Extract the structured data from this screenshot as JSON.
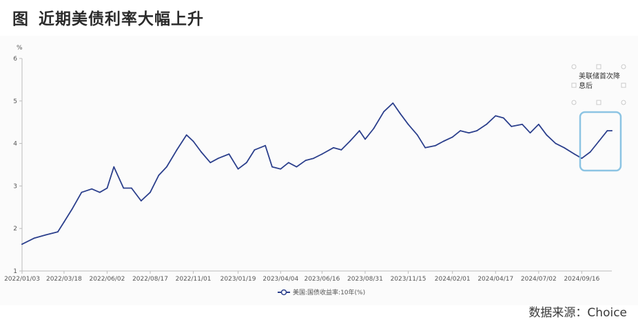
{
  "figure": {
    "title_prefix": "图",
    "title": "近期美债利率大幅上升",
    "source": "数据来源：Choice"
  },
  "colors": {
    "line": "#2b3f8c",
    "highlight_box": "#8cc4e3",
    "axis": "#bbbbbb"
  },
  "chart_data": {
    "type": "line",
    "ylabel": "%",
    "ylim": [
      1,
      6
    ],
    "y_ticks": [
      1,
      2,
      3,
      4,
      5,
      6
    ],
    "x_tick_labels": [
      "2022/01/03",
      "2022/03/18",
      "2022/06/02",
      "2022/08/17",
      "2022/11/01",
      "2023/01/19",
      "2023/04/04",
      "2023/06/16",
      "2023/08/31",
      "2023/11/15",
      "2024/02/01",
      "2024/04/17",
      "2024/07/02",
      "2024/09/16"
    ],
    "legend": "美国:国债收益率:10年(%)",
    "annotation": "美联储首次降息后",
    "x": [
      "2022/01/03",
      "2022/01/24",
      "2022/02/14",
      "2022/03/07",
      "2022/03/18",
      "2022/04/01",
      "2022/04/18",
      "2022/05/06",
      "2022/05/20",
      "2022/06/02",
      "2022/06/14",
      "2022/07/01",
      "2022/07/15",
      "2022/08/01",
      "2022/08/17",
      "2022/09/01",
      "2022/09/15",
      "2022/10/03",
      "2022/10/20",
      "2022/11/01",
      "2022/11/15",
      "2022/12/01",
      "2022/12/15",
      "2023/01/03",
      "2023/01/19",
      "2023/02/03",
      "2023/02/17",
      "2023/03/08",
      "2023/03/20",
      "2023/04/04",
      "2023/04/18",
      "2023/05/02",
      "2023/05/18",
      "2023/06/01",
      "2023/06/16",
      "2023/07/06",
      "2023/07/20",
      "2023/08/04",
      "2023/08/21",
      "2023/08/31",
      "2023/09/15",
      "2023/10/03",
      "2023/10/19",
      "2023/11/01",
      "2023/11/15",
      "2023/12/01",
      "2023/12/15",
      "2024/01/02",
      "2024/01/16",
      "2024/02/01",
      "2024/02/15",
      "2024/03/01",
      "2024/03/15",
      "2024/04/01",
      "2024/04/17",
      "2024/05/01",
      "2024/05/15",
      "2024/06/03",
      "2024/06/17",
      "2024/07/02",
      "2024/07/16",
      "2024/08/01",
      "2024/08/16",
      "2024/09/03",
      "2024/09/16",
      "2024/10/01",
      "2024/10/16",
      "2024/10/31",
      "2024/11/08"
    ],
    "series": [
      {
        "name": "美国:国债收益率:10年(%)",
        "values": [
          1.63,
          1.77,
          1.85,
          1.92,
          2.15,
          2.45,
          2.85,
          2.93,
          2.85,
          2.95,
          3.45,
          2.95,
          2.95,
          2.65,
          2.85,
          3.25,
          3.45,
          3.85,
          4.2,
          4.05,
          3.8,
          3.55,
          3.65,
          3.75,
          3.4,
          3.55,
          3.85,
          3.95,
          3.45,
          3.4,
          3.55,
          3.45,
          3.6,
          3.65,
          3.75,
          3.9,
          3.85,
          4.05,
          4.3,
          4.1,
          4.35,
          4.75,
          4.95,
          4.7,
          4.45,
          4.2,
          3.9,
          3.95,
          4.05,
          4.15,
          4.3,
          4.25,
          4.3,
          4.45,
          4.65,
          4.6,
          4.4,
          4.45,
          4.25,
          4.45,
          4.2,
          4.0,
          3.9,
          3.75,
          3.65,
          3.8,
          4.05,
          4.3,
          4.3
        ]
      }
    ]
  }
}
